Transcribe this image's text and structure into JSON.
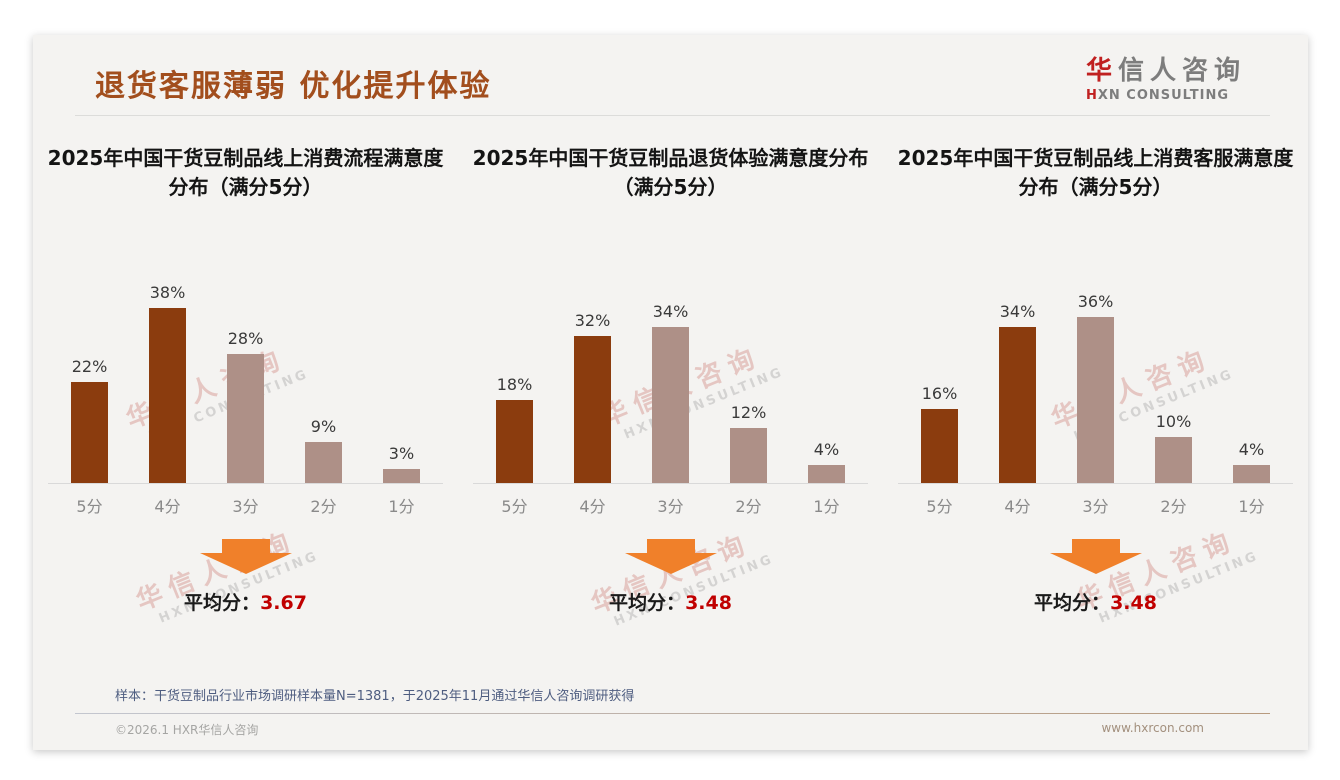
{
  "header": {
    "title": "退货客服薄弱 优化提升体验",
    "logo": {
      "cn_first": "华",
      "cn_rest": "信人咨询",
      "en_first": "H",
      "en_rest": "XN CONSULTING"
    }
  },
  "colors": {
    "bar_dark": "#8b3c0e",
    "bar_light": "#ae9087",
    "arrow": "#f0802a",
    "average_red": "#c00000",
    "title_brown": "#a24e1d",
    "logo_red": "#c02020"
  },
  "chart_data": [
    {
      "type": "bar",
      "title": "2025年中国干货豆制品线上消费流程满意度分布（满分5分）",
      "categories": [
        "5分",
        "4分",
        "3分",
        "2分",
        "1分"
      ],
      "values": [
        22,
        38,
        28,
        9,
        3
      ],
      "value_labels": [
        "22%",
        "38%",
        "28%",
        "9%",
        "3%"
      ],
      "bar_colors": [
        "bar_dark",
        "bar_dark",
        "bar_light",
        "bar_light",
        "bar_light"
      ],
      "ylim": [
        0,
        40
      ],
      "grid": false,
      "legend": "none",
      "average_label": "平均分：",
      "average_value": "3.67"
    },
    {
      "type": "bar",
      "title": "2025年中国干货豆制品退货体验满意度分布（满分5分）",
      "categories": [
        "5分",
        "4分",
        "3分",
        "2分",
        "1分"
      ],
      "values": [
        18,
        32,
        34,
        12,
        4
      ],
      "value_labels": [
        "18%",
        "32%",
        "34%",
        "12%",
        "4%"
      ],
      "bar_colors": [
        "bar_dark",
        "bar_dark",
        "bar_light",
        "bar_light",
        "bar_light"
      ],
      "ylim": [
        0,
        40
      ],
      "grid": false,
      "legend": "none",
      "average_label": "平均分：",
      "average_value": "3.48"
    },
    {
      "type": "bar",
      "title": "2025年中国干货豆制品线上消费客服满意度分布（满分5分）",
      "categories": [
        "5分",
        "4分",
        "3分",
        "2分",
        "1分"
      ],
      "values": [
        16,
        34,
        36,
        10,
        4
      ],
      "value_labels": [
        "16%",
        "34%",
        "36%",
        "10%",
        "4%"
      ],
      "bar_colors": [
        "bar_dark",
        "bar_dark",
        "bar_light",
        "bar_light",
        "bar_light"
      ],
      "ylim": [
        0,
        40
      ],
      "grid": false,
      "legend": "none",
      "average_label": "平均分：",
      "average_value": "3.48"
    }
  ],
  "watermark": {
    "cn": "华信人咨询",
    "en": "HXN CONSULTING"
  },
  "footer": {
    "note": "样本：干货豆制品行业市场调研样本量N=1381，于2025年11月通过华信人咨询调研获得",
    "copyright": "©2026.1 HXR华信人咨询",
    "url": "www.hxrcon.com"
  }
}
